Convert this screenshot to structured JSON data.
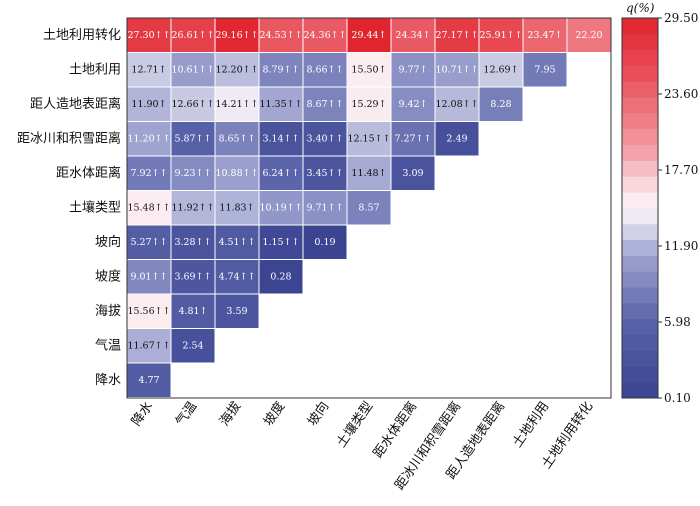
{
  "chart_data": {
    "type": "heatmap",
    "colorbar_title": "q(%)",
    "colorbar_ticks": [
      "29.50",
      "23.60",
      "17.70",
      "11.90",
      "5.98",
      "0.10"
    ],
    "zlim": [
      0.1,
      29.5
    ],
    "rows": [
      "土地利用转化",
      "土地利用",
      "距人造地表距离",
      "距冰川和积雪距离",
      "距水体距离",
      "土壤类型",
      "坡向",
      "坡度",
      "海拔",
      "气温",
      "降水"
    ],
    "columns": [
      "降水",
      "气温",
      "海拔",
      "坡度",
      "坡向",
      "土壤类型",
      "距水体距离",
      "距冰川和积雪距离",
      "距人造地表距离",
      "土地利用",
      "土地利用转化"
    ],
    "cells": [
      [
        {
          "v": 27.3,
          "t": "27.30↑↑"
        },
        {
          "v": 26.61,
          "t": "26.61↑↑"
        },
        {
          "v": 29.16,
          "t": "29.16↑↑"
        },
        {
          "v": 24.53,
          "t": "24.53↑↑"
        },
        {
          "v": 24.36,
          "t": "24.36↑↑"
        },
        {
          "v": 29.44,
          "t": "29.44↑"
        },
        {
          "v": 24.34,
          "t": "24.34↑"
        },
        {
          "v": 27.17,
          "t": "27.17↑↑"
        },
        {
          "v": 25.91,
          "t": "25.91↑↑"
        },
        {
          "v": 23.47,
          "t": "23.47↑"
        },
        {
          "v": 22.2,
          "t": "22.20"
        }
      ],
      [
        {
          "v": 12.71,
          "t": "12.71↑"
        },
        {
          "v": 10.61,
          "t": "10.61↑↑"
        },
        {
          "v": 12.2,
          "t": "12.20↑↑"
        },
        {
          "v": 8.79,
          "t": "8.79↑↑"
        },
        {
          "v": 8.66,
          "t": "8.66↑↑"
        },
        {
          "v": 15.5,
          "t": "15.50↑"
        },
        {
          "v": 9.77,
          "t": "9.77↑"
        },
        {
          "v": 10.71,
          "t": "10.71↑↑"
        },
        {
          "v": 12.69,
          "t": "12.69↑"
        },
        {
          "v": 7.95,
          "t": "7.95"
        }
      ],
      [
        {
          "v": 11.9,
          "t": "11.90↑"
        },
        {
          "v": 12.66,
          "t": "12.66↑↑"
        },
        {
          "v": 14.21,
          "t": "14.21↑↑"
        },
        {
          "v": 11.35,
          "t": "11.35↑↑"
        },
        {
          "v": 8.67,
          "t": "8.67↑↑"
        },
        {
          "v": 15.29,
          "t": "15.29↑"
        },
        {
          "v": 9.42,
          "t": "9.42↑"
        },
        {
          "v": 12.08,
          "t": "12.08↑↑"
        },
        {
          "v": 8.28,
          "t": "8.28"
        }
      ],
      [
        {
          "v": 11.2,
          "t": "11.20↑↑"
        },
        {
          "v": 5.87,
          "t": "5.87↑↑"
        },
        {
          "v": 8.65,
          "t": "8.65↑↑"
        },
        {
          "v": 3.14,
          "t": "3.14↑↑"
        },
        {
          "v": 3.4,
          "t": "3.40↑↑"
        },
        {
          "v": 12.15,
          "t": "12.15↑↑"
        },
        {
          "v": 7.27,
          "t": "7.27↑↑"
        },
        {
          "v": 2.49,
          "t": "2.49"
        }
      ],
      [
        {
          "v": 7.92,
          "t": "7.92↑↑"
        },
        {
          "v": 9.23,
          "t": "9.23↑↑"
        },
        {
          "v": 10.88,
          "t": "10.88↑↑"
        },
        {
          "v": 6.24,
          "t": "6.24↑↑"
        },
        {
          "v": 3.45,
          "t": "3.45↑↑"
        },
        {
          "v": 11.48,
          "t": "11.48↑"
        },
        {
          "v": 3.09,
          "t": "3.09"
        }
      ],
      [
        {
          "v": 15.48,
          "t": "15.48↑↑"
        },
        {
          "v": 11.92,
          "t": "11.92↑↑"
        },
        {
          "v": 11.83,
          "t": "11.83↑"
        },
        {
          "v": 10.19,
          "t": "10.19↑↑"
        },
        {
          "v": 9.71,
          "t": "9.71↑↑"
        },
        {
          "v": 8.57,
          "t": "8.57"
        }
      ],
      [
        {
          "v": 5.27,
          "t": "5.27↑↑"
        },
        {
          "v": 3.28,
          "t": "3.28↑↑"
        },
        {
          "v": 4.51,
          "t": "4.51↑↑"
        },
        {
          "v": 1.15,
          "t": "1.15↑↑"
        },
        {
          "v": 0.19,
          "t": "0.19"
        }
      ],
      [
        {
          "v": 9.01,
          "t": "9.01↑↑"
        },
        {
          "v": 3.69,
          "t": "3.69↑↑"
        },
        {
          "v": 4.74,
          "t": "4.74↑↑"
        },
        {
          "v": 0.28,
          "t": "0.28"
        }
      ],
      [
        {
          "v": 15.56,
          "t": "15.56↑↑"
        },
        {
          "v": 4.81,
          "t": "4.81↑"
        },
        {
          "v": 3.59,
          "t": "3.59"
        }
      ],
      [
        {
          "v": 11.67,
          "t": "11.67↑↑"
        },
        {
          "v": 2.54,
          "t": "2.54"
        }
      ],
      [
        {
          "v": 4.77,
          "t": "4.77"
        }
      ]
    ]
  }
}
